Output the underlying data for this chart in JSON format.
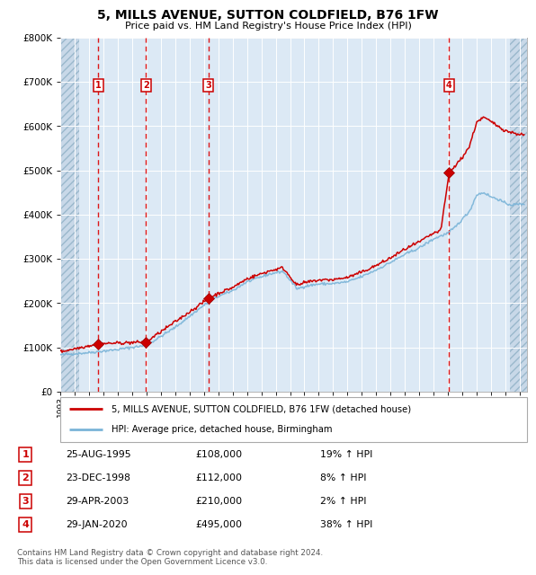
{
  "title": "5, MILLS AVENUE, SUTTON COLDFIELD, B76 1FW",
  "subtitle": "Price paid vs. HM Land Registry's House Price Index (HPI)",
  "ylim": [
    0,
    800000
  ],
  "yticks": [
    0,
    100000,
    200000,
    300000,
    400000,
    500000,
    600000,
    700000,
    800000
  ],
  "ytick_labels": [
    "£0",
    "£100K",
    "£200K",
    "£300K",
    "£400K",
    "£500K",
    "£600K",
    "£700K",
    "£800K"
  ],
  "xlim_start": 1993.0,
  "xlim_end": 2025.5,
  "hpi_color": "#7ab4d8",
  "sale_color": "#cc0000",
  "bg_color": "#dce9f5",
  "grid_color": "#ffffff",
  "sale_dates": [
    1995.646,
    1998.978,
    2003.326,
    2020.079
  ],
  "sale_prices": [
    108000,
    112000,
    210000,
    495000
  ],
  "sale_labels": [
    "1",
    "2",
    "3",
    "4"
  ],
  "legend_sale_label": "5, MILLS AVENUE, SUTTON COLDFIELD, B76 1FW (detached house)",
  "legend_hpi_label": "HPI: Average price, detached house, Birmingham",
  "table_data": [
    [
      "1",
      "25-AUG-1995",
      "£108,000",
      "19% ↑ HPI"
    ],
    [
      "2",
      "23-DEC-1998",
      "£112,000",
      "8% ↑ HPI"
    ],
    [
      "3",
      "29-APR-2003",
      "£210,000",
      "2% ↑ HPI"
    ],
    [
      "4",
      "29-JAN-2020",
      "£495,000",
      "38% ↑ HPI"
    ]
  ],
  "footer": "Contains HM Land Registry data © Crown copyright and database right 2024.\nThis data is licensed under the Open Government Licence v3.0.",
  "hpi_keypoints_x": [
    1993,
    1995,
    1997,
    1998,
    1999,
    2001,
    2003,
    2004,
    2005,
    2006,
    2007.5,
    2008.5,
    2009.5,
    2010,
    2011,
    2012,
    2013,
    2014,
    2015,
    2016,
    2017,
    2018,
    2019,
    2019.5,
    2020,
    2020.5,
    2021,
    2021.5,
    2022,
    2022.5,
    2023,
    2023.5,
    2024,
    2024.5,
    2025.3
  ],
  "hpi_keypoints_y": [
    83000,
    88000,
    95000,
    100000,
    104000,
    145000,
    195000,
    215000,
    228000,
    248000,
    265000,
    272000,
    232000,
    238000,
    243000,
    244000,
    248000,
    260000,
    275000,
    292000,
    310000,
    325000,
    345000,
    352000,
    358000,
    372000,
    390000,
    408000,
    445000,
    450000,
    440000,
    435000,
    425000,
    422000,
    425000
  ],
  "red_keypoints_x": [
    1993,
    1995.646,
    1998.978,
    2003.326,
    2004,
    2005,
    2006,
    2007.5,
    2008.5,
    2009.5,
    2010,
    2011,
    2012,
    2013,
    2014,
    2015,
    2016,
    2017,
    2018,
    2019,
    2019.5,
    2020.079,
    2020.5,
    2021,
    2021.5,
    2022,
    2022.5,
    2023,
    2023.5,
    2024,
    2024.5,
    2025.3
  ],
  "red_keypoints_y": [
    90000,
    108000,
    112000,
    210000,
    222000,
    235000,
    255000,
    272000,
    280000,
    240000,
    246000,
    252000,
    253000,
    258000,
    270000,
    285000,
    302000,
    322000,
    338000,
    358000,
    364000,
    495000,
    510000,
    530000,
    555000,
    610000,
    620000,
    610000,
    600000,
    590000,
    585000,
    580000
  ]
}
